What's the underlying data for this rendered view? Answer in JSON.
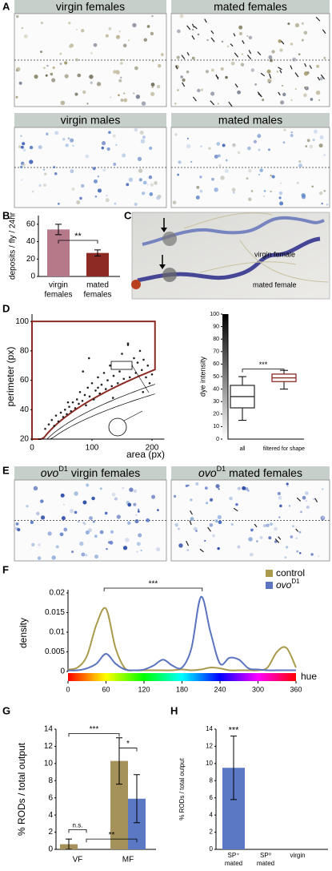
{
  "panel_letters": [
    "A",
    "B",
    "C",
    "D",
    "E",
    "F",
    "G",
    "H"
  ],
  "panel_a": {
    "headers": [
      "virgin females",
      "mated females",
      "virgin males",
      "mated males"
    ]
  },
  "panel_c": {
    "labels": [
      "virgin female",
      "mated female"
    ]
  },
  "panel_e": {
    "headers": [
      {
        "gene": "ovo",
        "allele": "D1",
        "text": "virgin females"
      },
      {
        "gene": "ovo",
        "allele": "D1",
        "text": "mated females"
      }
    ]
  },
  "chart_data": [
    {
      "type": "bar",
      "ylabel": "deposits / fly / 24hr",
      "categories": [
        [
          "virgin",
          "females"
        ],
        [
          "mated",
          "females"
        ]
      ],
      "values": [
        54,
        27
      ],
      "errors": [
        6,
        3.5
      ],
      "colors": [
        "#b5798a",
        "#8b2b24"
      ],
      "ylim": [
        0,
        70
      ],
      "yticks": [
        0,
        20,
        40,
        60
      ],
      "annotations": [
        "**"
      ]
    },
    {
      "type": "scatter",
      "xlabel": "area (px)",
      "ylabel": "perimeter (px)",
      "color": "#222222",
      "x": [
        22,
        28,
        33,
        37,
        40,
        44,
        48,
        52,
        55,
        58,
        62,
        65,
        68,
        72,
        75,
        78,
        80,
        84,
        88,
        90,
        93,
        96,
        100,
        103,
        106,
        110,
        113,
        116,
        120,
        123,
        126,
        130,
        133,
        136,
        140,
        143,
        146,
        150,
        153,
        156,
        160,
        163,
        166,
        170,
        173,
        176,
        180,
        183,
        186,
        190,
        193,
        196,
        200,
        60,
        85,
        110,
        135,
        160,
        185,
        95
      ],
      "y": [
        27,
        30,
        33,
        29,
        36,
        32,
        38,
        35,
        40,
        37,
        42,
        39,
        45,
        41,
        47,
        44,
        52,
        46,
        50,
        43,
        55,
        49,
        58,
        47,
        53,
        62,
        51,
        57,
        65,
        54,
        60,
        70,
        56,
        63,
        72,
        58,
        66,
        78,
        61,
        68,
        84,
        62,
        70,
        75,
        65,
        72,
        80,
        67,
        74,
        62,
        70,
        58,
        64,
        45,
        66,
        55,
        48,
        85,
        52,
        75
      ],
      "xlim": [
        0,
        210
      ],
      "ylim": [
        20,
        105
      ],
      "xticks": [
        0,
        100,
        200
      ],
      "yticks": [
        20,
        40,
        60,
        80,
        100
      ]
    },
    {
      "type": "box",
      "ylabel": "dye intensity",
      "categories": [
        "all",
        "filtered for shape"
      ],
      "boxes": [
        {
          "whislo": 15,
          "q1": 25,
          "med": 34,
          "q3": 43,
          "whishi": 50
        },
        {
          "whislo": 40,
          "q1": 46,
          "med": 49,
          "q3": 52,
          "whishi": 55
        }
      ],
      "colors": [
        "#333333",
        "#8b2b24"
      ],
      "ylim": [
        0,
        100
      ],
      "yticks": [
        0,
        10,
        20,
        30,
        40,
        50,
        60,
        70,
        80,
        90,
        100
      ],
      "annotations": [
        "***"
      ]
    },
    {
      "type": "line",
      "ylabel": "density",
      "xlabel": "hue",
      "x": [
        0,
        15,
        30,
        45,
        60,
        75,
        90,
        105,
        120,
        135,
        150,
        165,
        180,
        195,
        210,
        225,
        240,
        255,
        270,
        285,
        300,
        315,
        330,
        345,
        360
      ],
      "series": [
        {
          "name": "control",
          "color": "#a99a4c",
          "values": [
            0.0005,
            0.001,
            0.004,
            0.012,
            0.016,
            0.006,
            0.0008,
            0.0003,
            0.0003,
            0.0003,
            0.0003,
            0.0003,
            0.0005,
            0.0003,
            0.0005,
            0.001,
            0.0008,
            0.0003,
            0.0003,
            0.0003,
            0.0003,
            0.001,
            0.005,
            0.006,
            0.001
          ]
        },
        {
          "name": "ovo",
          "name_superscript": "D1",
          "color": "#5a74bf",
          "values": [
            0.0003,
            0.0003,
            0.0008,
            0.002,
            0.0045,
            0.002,
            0.0005,
            0.0003,
            0.0005,
            0.0015,
            0.003,
            0.0015,
            0.001,
            0.006,
            0.019,
            0.01,
            0.002,
            0.0035,
            0.003,
            0.0008,
            0.0005,
            0.0003,
            0.0003,
            0.0003,
            0.0003
          ]
        }
      ],
      "xlim": [
        0,
        360
      ],
      "ylim": [
        0,
        0.02
      ],
      "xticks": [
        0,
        60,
        120,
        180,
        240,
        300,
        360
      ],
      "yticks": [
        0,
        0.005,
        0.01,
        0.015,
        0.02
      ],
      "annotations": [
        "***"
      ]
    },
    {
      "type": "grouped-bar",
      "ylabel": "% RODs / total output",
      "categories": [
        "VF",
        "MF"
      ],
      "series": [
        {
          "name": "control",
          "color": "#a5925a",
          "values": [
            0.6,
            10.3
          ],
          "errors": [
            0.6,
            2.7
          ]
        },
        {
          "name": "ovo",
          "color": "#5a78c4",
          "values": [
            0,
            5.9
          ],
          "errors": [
            null,
            2.8
          ]
        }
      ],
      "ylim": [
        0,
        14
      ],
      "yticks": [
        0,
        2,
        4,
        6,
        8,
        10,
        12,
        14
      ],
      "annotations": [
        "***",
        "*",
        "n.s.",
        "**"
      ]
    },
    {
      "type": "bar",
      "ylabel": "% RODs / total output",
      "categories": [
        [
          "SP⁺",
          "mated"
        ],
        [
          "SP⁰",
          "mated"
        ],
        [
          "virgin"
        ]
      ],
      "values": [
        9.5,
        0,
        0
      ],
      "errors": [
        3.7,
        null,
        null
      ],
      "colors": [
        "#5a78c4",
        "#5a78c4",
        "#5a78c4"
      ],
      "ylim": [
        0,
        14
      ],
      "yticks": [
        0,
        2,
        4,
        6,
        8,
        10,
        12,
        14
      ],
      "annotations": [
        "***"
      ]
    }
  ]
}
